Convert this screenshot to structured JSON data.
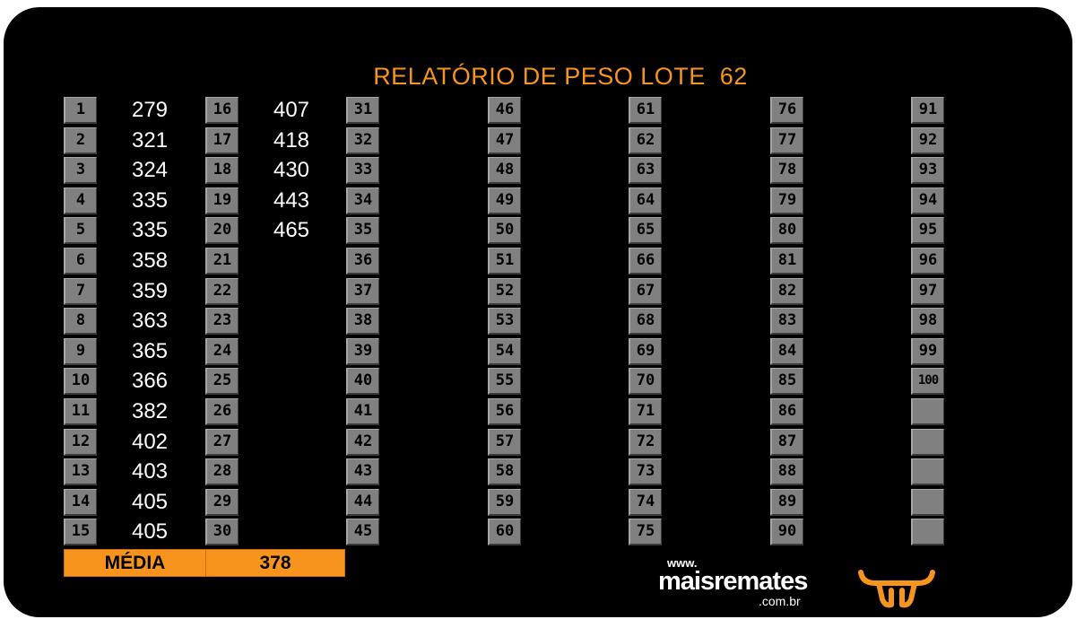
{
  "title": "RELATÓRIO DE PESO LOTE  62",
  "colors": {
    "accent": "#f7941d",
    "background": "#000000",
    "cell": "#808080"
  },
  "columns": [
    {
      "numbers": [
        "1",
        "2",
        "3",
        "4",
        "5",
        "6",
        "7",
        "8",
        "9",
        "10",
        "11",
        "12",
        "13",
        "14",
        "15"
      ],
      "weights": [
        "279",
        "321",
        "324",
        "335",
        "335",
        "358",
        "359",
        "363",
        "365",
        "366",
        "382",
        "402",
        "403",
        "405",
        "405"
      ]
    },
    {
      "numbers": [
        "16",
        "17",
        "18",
        "19",
        "20",
        "21",
        "22",
        "23",
        "24",
        "25",
        "26",
        "27",
        "28",
        "29",
        "30"
      ],
      "weights": [
        "407",
        "418",
        "430",
        "443",
        "465",
        "",
        "",
        "",
        "",
        "",
        "",
        "",
        "",
        "",
        ""
      ]
    },
    {
      "numbers": [
        "31",
        "32",
        "33",
        "34",
        "35",
        "36",
        "37",
        "38",
        "39",
        "40",
        "41",
        "42",
        "43",
        "44",
        "45"
      ],
      "weights": []
    },
    {
      "numbers": [
        "46",
        "47",
        "48",
        "49",
        "50",
        "51",
        "52",
        "53",
        "54",
        "55",
        "56",
        "57",
        "58",
        "59",
        "60"
      ],
      "weights": []
    },
    {
      "numbers": [
        "61",
        "62",
        "63",
        "64",
        "65",
        "66",
        "67",
        "68",
        "69",
        "70",
        "71",
        "72",
        "73",
        "74",
        "75"
      ],
      "weights": []
    },
    {
      "numbers": [
        "76",
        "77",
        "78",
        "79",
        "80",
        "81",
        "82",
        "83",
        "84",
        "85",
        "86",
        "87",
        "88",
        "89",
        "90"
      ],
      "weights": []
    },
    {
      "numbers": [
        "91",
        "92",
        "93",
        "94",
        "95",
        "96",
        "97",
        "98",
        "99",
        "100",
        "",
        "",
        "",
        "",
        ""
      ],
      "weights": []
    }
  ],
  "summary": {
    "label": "MÉDIA",
    "value": "378"
  },
  "brand": {
    "www": "www.",
    "name": "maisremates",
    "domain": ".com.br",
    "logo_icon": "bull-head-icon"
  }
}
